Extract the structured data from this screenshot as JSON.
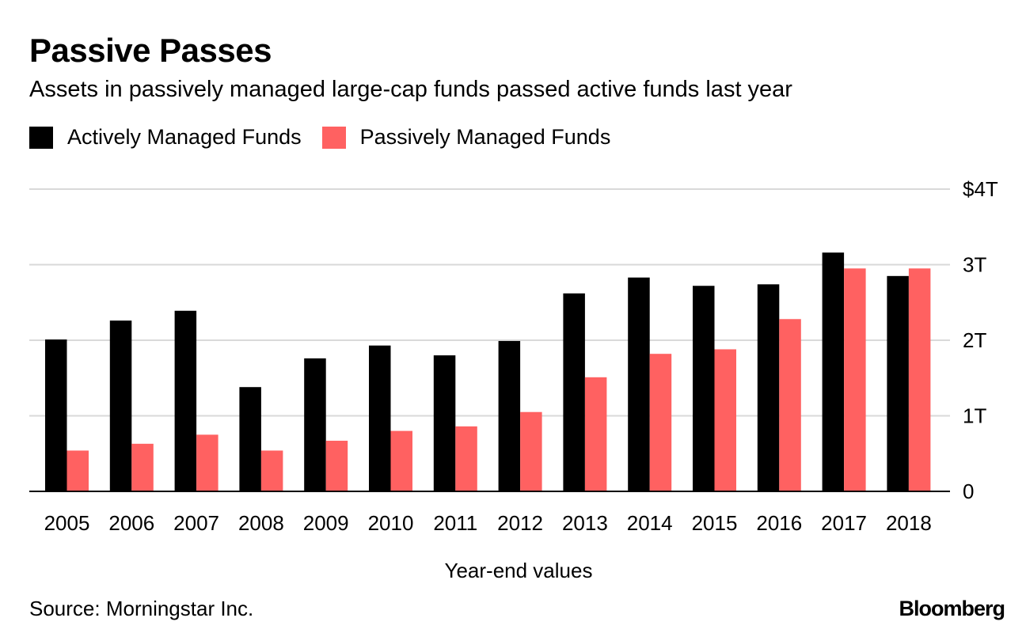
{
  "header": {
    "title": "Passive Passes",
    "subtitle": "Assets in passively managed large-cap funds passed active funds last year"
  },
  "footer": {
    "source": "Source: Morningstar Inc.",
    "brand": "Bloomberg"
  },
  "chart_data": {
    "type": "bar",
    "title": "Passive Passes",
    "subtitle": "Assets in passively managed large-cap funds passed active funds last year",
    "xlabel": "Year-end values",
    "ylabel": "",
    "ylim": [
      0,
      4
    ],
    "yticks": [
      0,
      1,
      2,
      3,
      4
    ],
    "ytick_labels": [
      "0",
      "1T",
      "2T",
      "3T",
      "$4T"
    ],
    "grid": true,
    "legend_position": "top-left",
    "categories": [
      "2005",
      "2006",
      "2007",
      "2008",
      "2009",
      "2010",
      "2011",
      "2012",
      "2013",
      "2014",
      "2015",
      "2016",
      "2017",
      "2018"
    ],
    "series": [
      {
        "name": "Actively Managed Funds",
        "color": "#000000",
        "values": [
          2.01,
          2.26,
          2.39,
          1.38,
          1.76,
          1.93,
          1.8,
          1.99,
          2.62,
          2.83,
          2.72,
          2.74,
          3.16,
          2.85
        ]
      },
      {
        "name": "Passively Managed Funds",
        "color": "#ff6161",
        "values": [
          0.54,
          0.63,
          0.75,
          0.54,
          0.67,
          0.8,
          0.86,
          1.05,
          1.51,
          1.82,
          1.88,
          2.28,
          2.95,
          2.95
        ]
      }
    ]
  }
}
